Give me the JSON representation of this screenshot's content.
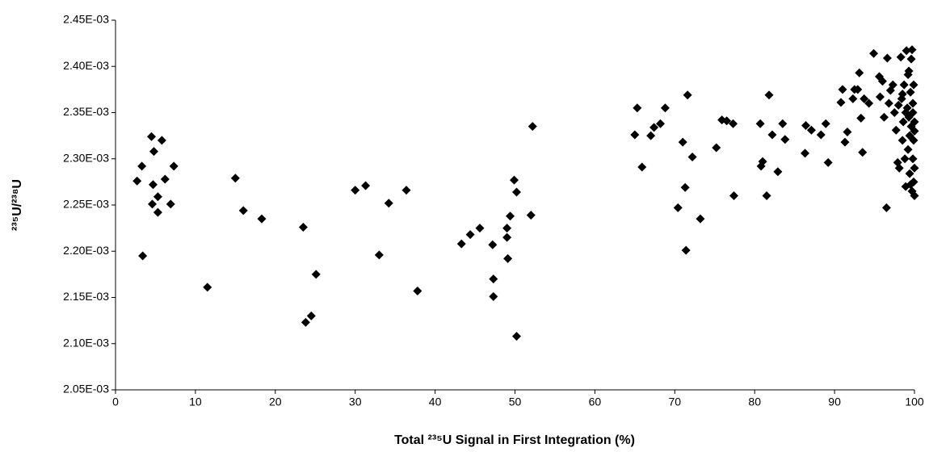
{
  "chart_data": {
    "type": "scatter",
    "x_label": "Total ²³⁵U Signal in First Integration (%)",
    "y_label": "²³⁵U/²³⁸U",
    "color": "#000000",
    "marker": "diamond",
    "xlim": [
      0,
      100
    ],
    "xticks": [
      0,
      10,
      20,
      30,
      40,
      50,
      60,
      70,
      80,
      90,
      100
    ],
    "ylim": [
      0.00205,
      0.00245
    ],
    "yticks": [
      {
        "value": 0.00205,
        "label": "2.05E-03"
      },
      {
        "value": 0.0021,
        "label": "2.10E-03"
      },
      {
        "value": 0.00215,
        "label": "2.15E-03"
      },
      {
        "value": 0.0022,
        "label": "2.20E-03"
      },
      {
        "value": 0.00225,
        "label": "2.25E-03"
      },
      {
        "value": 0.0023,
        "label": "2.30E-03"
      },
      {
        "value": 0.00235,
        "label": "2.35E-03"
      },
      {
        "value": 0.0024,
        "label": "2.40E-03"
      },
      {
        "value": 0.00245,
        "label": "2.45E-03"
      }
    ],
    "x": [
      2.7,
      3.3,
      3.4,
      4.5,
      4.6,
      4.7,
      4.8,
      5.3,
      5.3,
      5.8,
      6.2,
      6.9,
      7.3,
      11.5,
      15.0,
      16.0,
      18.3,
      23.5,
      23.8,
      24.5,
      25.1,
      30.0,
      31.3,
      33.0,
      34.2,
      36.4,
      37.8,
      43.3,
      44.4,
      45.6,
      47.2,
      47.3,
      47.3,
      49.0,
      49.0,
      49.1,
      49.4,
      49.9,
      50.2,
      50.2,
      52.0,
      52.2,
      65.0,
      65.3,
      65.9,
      67.0,
      67.4,
      68.2,
      68.8,
      70.4,
      71.0,
      71.3,
      71.4,
      71.6,
      72.2,
      73.2,
      75.2,
      75.9,
      76.5,
      77.3,
      77.4,
      80.7,
      80.8,
      81.0,
      81.5,
      81.8,
      82.2,
      82.9,
      83.5,
      83.8,
      86.3,
      86.4,
      87.1,
      88.3,
      88.9,
      89.2,
      90.8,
      91.0,
      91.3,
      91.6,
      92.3,
      92.5,
      92.9,
      93.1,
      93.3,
      93.5,
      93.7,
      94.3,
      94.9,
      95.6,
      95.7,
      96.0,
      96.2,
      96.5,
      96.6,
      96.8,
      97.0,
      97.3,
      97.5,
      97.7,
      97.9,
      98.0,
      98.1,
      98.3,
      98.4,
      98.5,
      98.6,
      98.7,
      98.8,
      98.9,
      99.0,
      99.1,
      99.2,
      99.3,
      99.4,
      99.5,
      99.6,
      99.7,
      99.7,
      99.8,
      99.8,
      99.9,
      99.9,
      100,
      100,
      100,
      99.6,
      99.5,
      99.3,
      99.2,
      98.9,
      98.5,
      99.9,
      99.8,
      100,
      99.4
    ],
    "values": [
      0.002276,
      0.002292,
      0.002195,
      0.002324,
      0.002251,
      0.002272,
      0.002308,
      0.002259,
      0.002242,
      0.00232,
      0.002278,
      0.002251,
      0.002292,
      0.002161,
      0.002279,
      0.002244,
      0.002235,
      0.002226,
      0.002123,
      0.00213,
      0.002175,
      0.002266,
      0.002271,
      0.002196,
      0.002252,
      0.002266,
      0.002157,
      0.002208,
      0.002218,
      0.002225,
      0.002207,
      0.00217,
      0.002151,
      0.002225,
      0.002215,
      0.002192,
      0.002238,
      0.002277,
      0.002264,
      0.002108,
      0.002239,
      0.002335,
      0.002326,
      0.002355,
      0.002291,
      0.002325,
      0.002334,
      0.002338,
      0.002355,
      0.002247,
      0.002318,
      0.002269,
      0.002201,
      0.002369,
      0.002302,
      0.002235,
      0.002312,
      0.002342,
      0.002341,
      0.002338,
      0.00226,
      0.002338,
      0.002292,
      0.002297,
      0.00226,
      0.002369,
      0.002326,
      0.002286,
      0.002338,
      0.002321,
      0.002306,
      0.002336,
      0.002331,
      0.002326,
      0.002338,
      0.002296,
      0.002361,
      0.002375,
      0.002318,
      0.002329,
      0.002365,
      0.002375,
      0.002375,
      0.002393,
      0.002344,
      0.002307,
      0.002365,
      0.00236,
      0.002414,
      0.002389,
      0.002367,
      0.002384,
      0.002345,
      0.002247,
      0.002409,
      0.00236,
      0.002374,
      0.00238,
      0.00235,
      0.002331,
      0.002296,
      0.002358,
      0.00229,
      0.00241,
      0.002365,
      0.00232,
      0.00234,
      0.00238,
      0.0023,
      0.00227,
      0.002417,
      0.002355,
      0.002391,
      0.002345,
      0.002284,
      0.002372,
      0.002335,
      0.002418,
      0.002265,
      0.0023,
      0.00236,
      0.00238,
      0.00232,
      0.00226,
      0.00234,
      0.00229,
      0.002408,
      0.002272,
      0.002395,
      0.00231,
      0.00235,
      0.00237,
      0.002275,
      0.00235,
      0.00233,
      0.002325
    ]
  }
}
